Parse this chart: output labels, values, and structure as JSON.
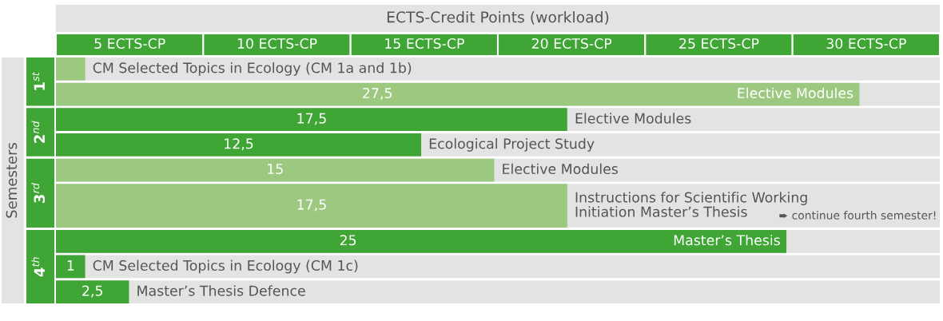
{
  "chart_data": [
    {
      "type": "other",
      "title": "ECTS-Credit Points (workload)",
      "annotations": [
        "5 ECTS-CP",
        "10 ECTS-CP",
        "15 ECTS-CP",
        "20 ECTS-CP",
        "25 ECTS-CP",
        "30 ECTS-CP"
      ]
    },
    {
      "type": "bar",
      "orientation": "horizontal",
      "ylabel": "Semesters",
      "data_labels": false,
      "categories": [
        "CM Selected Topics in Ecology (CM 1a and 1b)",
        "Elective Modules",
        "Elective Modules",
        "Ecological Project Study",
        "Elective Modules",
        "Instructions for Scientific Working\nInitiation Master’s Thesis",
        "Master’s Thesis",
        "CM Selected Topics in Ecology (CM 1c)",
        "Master’s Thesis Defence"
      ],
      "series": [
        {
          "name": "1$^{st}$",
          "colors": [
            "#9dc880",
            "#9dc880",
            null,
            null,
            null,
            null,
            null,
            null,
            null
          ],
          "values": [
            1,
            27.5,
            null,
            null,
            null,
            null,
            null,
            null,
            null
          ],
          "value_labels": [
            null,
            "27,5",
            null,
            null,
            null,
            null,
            null,
            null,
            null
          ]
        },
        {
          "name": "2$^{nd}$",
          "colors": [
            null,
            null,
            "#3fa535",
            "#3fa535",
            null,
            null,
            null,
            null,
            null
          ],
          "values": [
            null,
            null,
            17.5,
            12.5,
            null,
            null,
            null,
            null,
            null
          ],
          "value_labels": [
            null,
            null,
            "17,5",
            "12,5",
            null,
            null,
            null,
            null,
            null
          ]
        },
        {
          "name": "3$^{rd}$",
          "colors": [
            null,
            null,
            null,
            null,
            "#9dc880",
            "#9dc880",
            null,
            null,
            null
          ],
          "values": [
            null,
            null,
            null,
            null,
            15,
            17.5,
            null,
            null,
            null
          ],
          "value_labels": [
            null,
            null,
            null,
            null,
            "15",
            "17,5",
            null,
            null,
            null
          ]
        },
        {
          "name": "4$^{th}$",
          "colors": [
            null,
            null,
            null,
            null,
            null,
            null,
            "#3fa535",
            "#3fa535",
            "#3fa535"
          ],
          "values": [
            null,
            null,
            null,
            null,
            null,
            null,
            25,
            1,
            2.5
          ],
          "value_labels": [
            null,
            null,
            null,
            null,
            null,
            null,
            "25",
            "1",
            "2,5"
          ]
        }
      ],
      "annotations": [
        "➨ continue fourth semester!"
      ]
    }
  ]
}
